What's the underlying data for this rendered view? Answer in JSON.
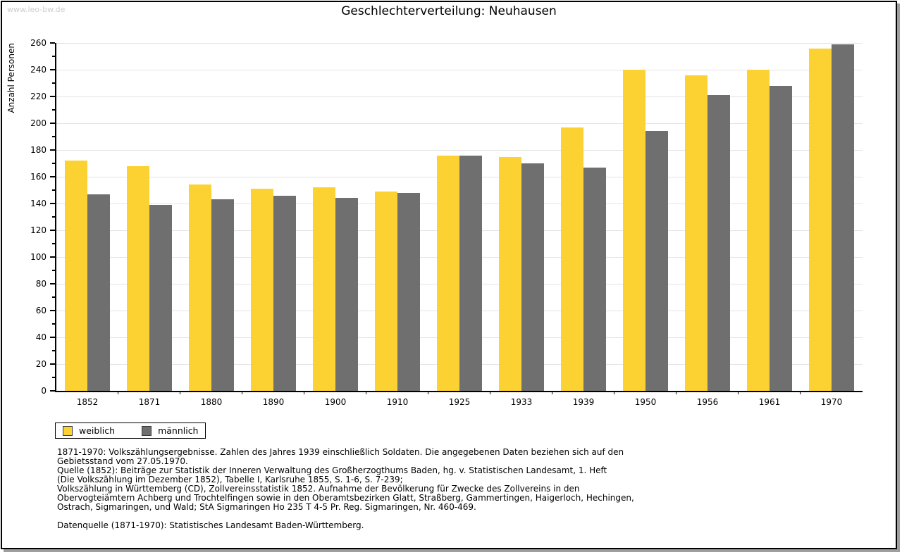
{
  "watermark": "www.leo-bw.de",
  "title": "Geschlechterverteilung: Neuhausen",
  "chart_data": {
    "type": "bar",
    "title": "Geschlechterverteilung: Neuhausen",
    "xlabel": "",
    "ylabel": "Anzahl Personen",
    "ylim": [
      0,
      260
    ],
    "ytick_step": 20,
    "yticks": [
      0,
      20,
      40,
      60,
      80,
      100,
      120,
      140,
      160,
      180,
      200,
      220,
      240,
      260
    ],
    "grid": true,
    "legend_position": "bottom-left",
    "categories": [
      "1852",
      "1871",
      "1880",
      "1890",
      "1900",
      "1910",
      "1925",
      "1933",
      "1939",
      "1950",
      "1956",
      "1961",
      "1970"
    ],
    "series": [
      {
        "name": "weiblich",
        "color": "#fcd232",
        "values": [
          172,
          168,
          154,
          151,
          152,
          149,
          176,
          175,
          197,
          240,
          236,
          240,
          256
        ]
      },
      {
        "name": "männlich",
        "color": "#6f6f6f",
        "values": [
          147,
          139,
          143,
          146,
          144,
          148,
          176,
          170,
          167,
          194,
          221,
          228,
          259
        ]
      }
    ]
  },
  "footnotes": {
    "lines": [
      "1871-1970: Volkszählungsergebnisse. Zahlen des Jahres 1939 einschließlich Soldaten. Die angegebenen Daten beziehen sich auf den",
      "Gebietsstand vom 27.05.1970.",
      "Quelle (1852): Beiträge zur Statistik der Inneren Verwaltung des Großherzogthums Baden, hg. v. Statistischen Landesamt, 1. Heft",
      "(Die Volkszählung im Dezember 1852), Tabelle I, Karlsruhe 1855, S. 1-6, S. 7-239;",
      "Volkszählung in Württemberg (CD), Zollvereinsstatistik 1852. Aufnahme der Bevölkerung für Zwecke des Zollvereins in den",
      "Obervogteiämtern Achberg und Trochtelfingen sowie in den Oberamtsbezirken Glatt, Straßberg, Gammertingen, Haigerloch, Hechingen,",
      "Ostrach, Sigmaringen, und Wald; StA Sigmaringen Ho 235 T 4-5 Pr. Reg. Sigmaringen, Nr. 460-469."
    ],
    "datasource": "Datenquelle (1871-1970): Statistisches Landesamt Baden-Württemberg."
  },
  "colors": {
    "female_bar": "#fcd232",
    "male_bar": "#6f6f6f",
    "gridline": "#e4e4e4",
    "axis": "#000000",
    "watermark": "#cccccc",
    "frame_shadow": "#9e9e9e"
  }
}
